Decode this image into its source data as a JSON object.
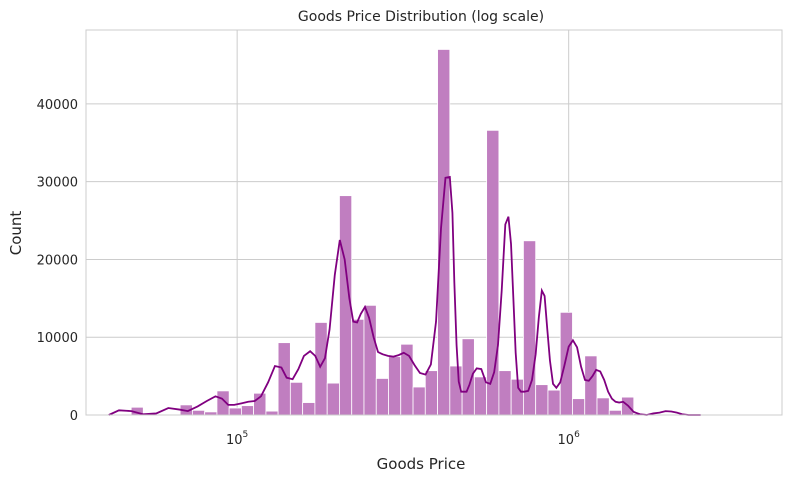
{
  "chart_data": {
    "type": "bar",
    "title": "Goods Price Distribution (log scale)",
    "xlabel": "Goods Price",
    "ylabel": "Count",
    "x_scale": "log",
    "xlim": [
      35000,
      4400000
    ],
    "ylim": [
      0,
      49500
    ],
    "grid": true,
    "colors": {
      "bar": "#c07ec0",
      "kde": "#800080",
      "grid": "#cccccc",
      "spine": "#cccccc"
    },
    "x_ticks": [
      {
        "value": 100000,
        "base": "10",
        "exp": "5"
      },
      {
        "value": 1000000,
        "base": "10",
        "exp": "6"
      }
    ],
    "y_ticks": [
      0,
      10000,
      20000,
      30000,
      40000
    ],
    "bin_edges": [
      44000,
      47900,
      52100,
      56800,
      61800,
      67300,
      73300,
      79800,
      86900,
      94600,
      103000,
      112100,
      122100,
      132900,
      144700,
      157600,
      171600,
      186900,
      203500,
      221600,
      241300,
      262800,
      286100,
      311500,
      339300,
      369400,
      402300,
      438000,
      477000,
      519400,
      565600,
      615900,
      670600,
      730300,
      795200,
      865900,
      942900,
      1026700,
      1118000,
      1217400,
      1325600,
      1443500,
      1571800,
      1711500,
      1863700,
      2029400,
      2209800,
      2406300,
      2620200,
      2853200,
      3106800,
      3383100,
      3683800,
      4011300
    ],
    "counts": [
      0,
      1000,
      0,
      0,
      0,
      1300,
      600,
      400,
      3100,
      900,
      1200,
      2800,
      500,
      9300,
      4200,
      1600,
      11900,
      4100,
      28200,
      12300,
      14100,
      4700,
      7500,
      9100,
      3600,
      5700,
      47000,
      6300,
      9800,
      4900,
      36600,
      5700,
      4600,
      22400,
      3900,
      3200,
      13200,
      2100,
      7600,
      2200,
      600,
      2300,
      200,
      100,
      100,
      0,
      0,
      0,
      0,
      0,
      0,
      0,
      0
    ],
    "kde": {
      "x": [
        41000,
        44000,
        48000,
        52000,
        57000,
        62000,
        67000,
        71000,
        76000,
        81000,
        86000,
        90000,
        94000,
        98000,
        103000,
        108000,
        113000,
        118000,
        124000,
        130000,
        136000,
        141000,
        147000,
        153000,
        159000,
        166000,
        172000,
        178000,
        184000,
        190000,
        197000,
        204000,
        211000,
        218000,
        224000,
        230000,
        236000,
        243000,
        250000,
        258000,
        266000,
        275000,
        285000,
        296000,
        307000,
        318000,
        330000,
        343000,
        356000,
        370000,
        384000,
        398000,
        412000,
        425000,
        438000,
        446000,
        452000,
        459000,
        466000,
        474000,
        483000,
        492000,
        502000,
        514000,
        528000,
        545000,
        563000,
        580000,
        596000,
        612000,
        628000,
        644000,
        658000,
        670000,
        681000,
        692000,
        704000,
        718000,
        735000,
        755000,
        775000,
        795000,
        813000,
        830000,
        846000,
        862000,
        878000,
        897000,
        918000,
        943000,
        970000,
        1000000,
        1030000,
        1060000,
        1090000,
        1120000,
        1150000,
        1180000,
        1210000,
        1245000,
        1280000,
        1315000,
        1350000,
        1385000,
        1420000,
        1460000,
        1510000,
        1570000,
        1640000,
        1720000,
        1800000,
        1880000,
        1960000,
        2040000,
        2120000,
        2200000,
        2300000,
        2400000,
        2500000
      ],
      "y": [
        0,
        600,
        500,
        100,
        200,
        900,
        700,
        500,
        1100,
        1800,
        2400,
        2100,
        1300,
        1300,
        1500,
        1700,
        1800,
        2400,
        4200,
        6300,
        6100,
        4800,
        4600,
        5900,
        7600,
        8200,
        7600,
        6200,
        7300,
        11000,
        18000,
        22500,
        20000,
        15000,
        12000,
        11900,
        13000,
        13900,
        12500,
        10000,
        8100,
        7800,
        7600,
        7500,
        7700,
        8000,
        7600,
        6400,
        5400,
        5200,
        6500,
        12000,
        24000,
        30500,
        30600,
        26000,
        17000,
        9000,
        4300,
        3000,
        3000,
        3000,
        3900,
        5300,
        6000,
        5900,
        4200,
        4000,
        5500,
        9000,
        16000,
        24500,
        25500,
        22000,
        15000,
        8000,
        3500,
        3000,
        3000,
        3100,
        4500,
        7800,
        12600,
        16000,
        15300,
        11000,
        7000,
        4000,
        3500,
        4200,
        6300,
        8800,
        9600,
        8700,
        6200,
        4500,
        4400,
        5000,
        5800,
        5600,
        4500,
        3000,
        2100,
        1700,
        1600,
        1700,
        1200,
        400,
        100,
        0,
        200,
        300,
        500,
        450,
        300,
        100,
        0,
        0,
        0
      ]
    }
  }
}
